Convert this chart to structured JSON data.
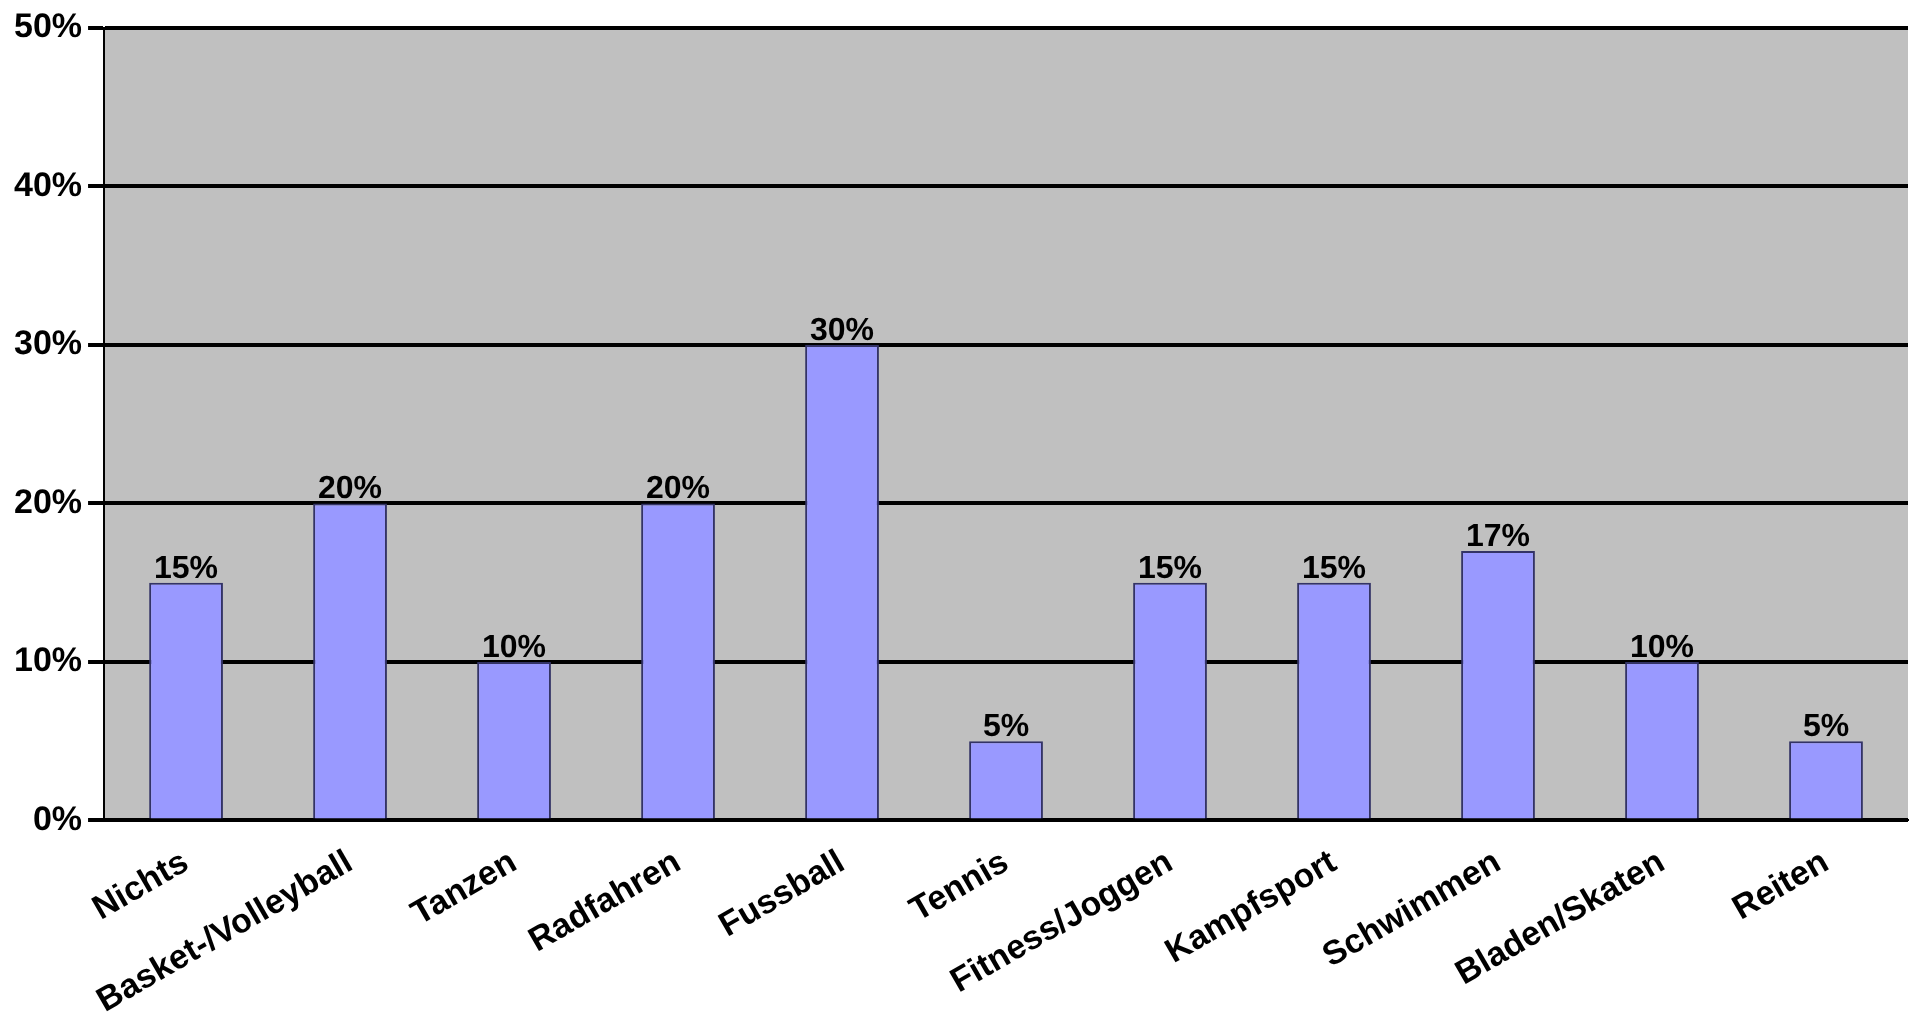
{
  "chart_data": {
    "type": "bar",
    "categories": [
      "Nichts",
      "Basket-/Volleyball",
      "Tanzen",
      "Radfahren",
      "Fussball",
      "Tennis",
      "Fitness/Joggen",
      "Kampfsport",
      "Schwimmen",
      "Bladen/Skaten",
      "Reiten"
    ],
    "values": [
      15,
      20,
      10,
      20,
      30,
      5,
      15,
      15,
      17,
      10,
      5
    ],
    "value_labels": [
      "15%",
      "20%",
      "10%",
      "20%",
      "30%",
      "5%",
      "15%",
      "15%",
      "17%",
      "10%",
      "5%"
    ],
    "color": "#9999ff",
    "ylim": [
      0,
      50
    ],
    "yticks": [
      {
        "value": 0,
        "label": "0%"
      },
      {
        "value": 10,
        "label": "10%"
      },
      {
        "value": 20,
        "label": "20%"
      },
      {
        "value": 30,
        "label": "30%"
      },
      {
        "value": 40,
        "label": "40%"
      },
      {
        "value": 50,
        "label": "50%"
      }
    ],
    "grid": "y",
    "legend": false
  }
}
